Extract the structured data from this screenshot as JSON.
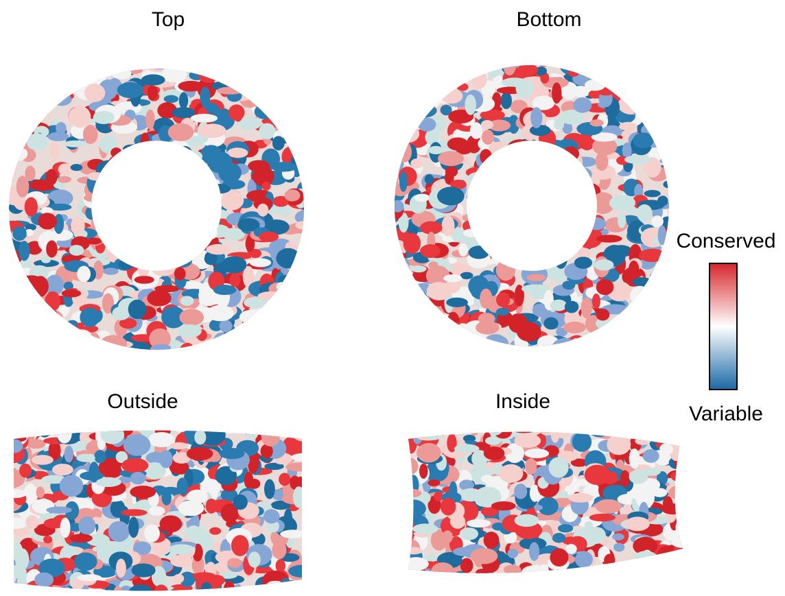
{
  "panels": [
    {
      "label": "Top"
    },
    {
      "label": "Bottom"
    },
    {
      "label": "Outside"
    },
    {
      "label": "Inside"
    }
  ],
  "legend": {
    "high": "Conserved",
    "low": "Variable"
  }
}
